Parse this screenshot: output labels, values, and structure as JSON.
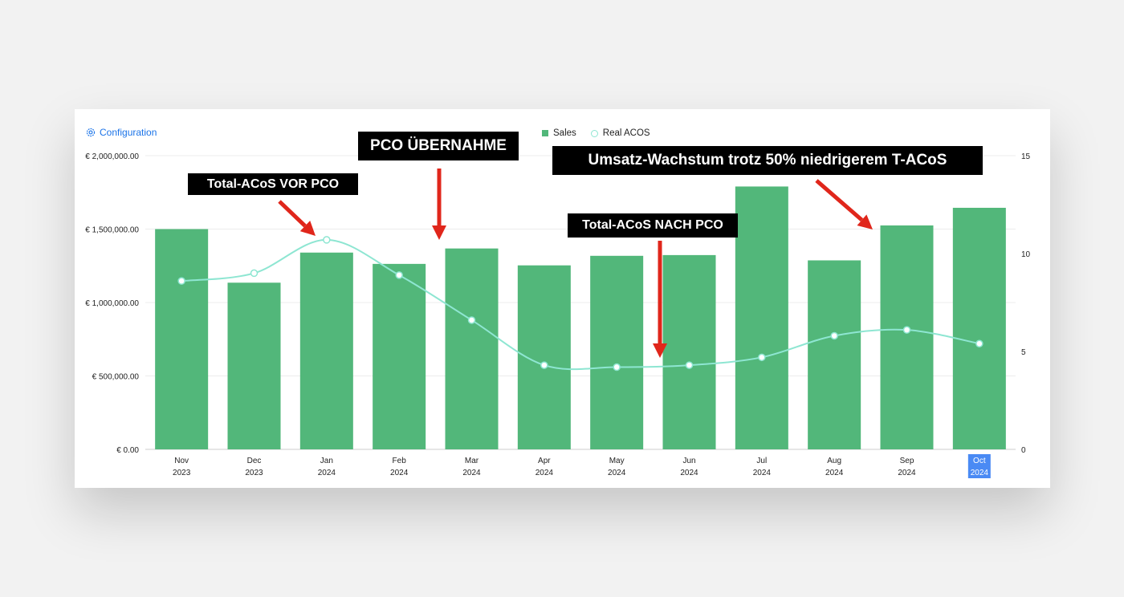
{
  "config": {
    "label": "Configuration",
    "icon": "gear-icon"
  },
  "legend": {
    "sales": "Sales",
    "acos": "Real ACOS"
  },
  "colors": {
    "bar": "#52b77a",
    "line": "#8ee6d2",
    "arrow": "#e0261b",
    "link": "#1a73e8",
    "highlight": "#4a8af4"
  },
  "callouts": {
    "before": "Total-ACoS VOR PCO",
    "takeover": "PCO ÜBERNAHME",
    "after": "Total-ACoS NACH PCO",
    "growth": "Umsatz-Wachstum trotz 50% niedrigerem T-ACoS"
  },
  "chart_data": {
    "type": "bar",
    "categories": [
      [
        "Nov",
        "2023"
      ],
      [
        "Dec",
        "2023"
      ],
      [
        "Jan",
        "2024"
      ],
      [
        "Feb",
        "2024"
      ],
      [
        "Mar",
        "2024"
      ],
      [
        "Apr",
        "2024"
      ],
      [
        "May",
        "2024"
      ],
      [
        "Jun",
        "2024"
      ],
      [
        "Jul",
        "2024"
      ],
      [
        "Aug",
        "2024"
      ],
      [
        "Sep",
        "2024"
      ],
      [
        "Oct",
        "2024"
      ]
    ],
    "highlighted_category": 11,
    "series": [
      {
        "name": "Sales",
        "type": "bar",
        "axis": "left",
        "values": [
          1500000,
          1135000,
          1340000,
          1263000,
          1368000,
          1253000,
          1318000,
          1323000,
          1790000,
          1287000,
          1525000,
          1645000
        ]
      },
      {
        "name": "Real ACOS",
        "type": "line",
        "smooth": true,
        "axis": "right",
        "values": [
          8.6,
          9.0,
          10.7,
          8.9,
          6.6,
          4.3,
          4.2,
          4.3,
          4.7,
          5.8,
          6.1,
          5.4
        ]
      }
    ],
    "y_left": {
      "min": 0,
      "max": 2000000,
      "ticks": [
        "€ 0.00",
        "€ 500,000.00",
        "€ 1,000,000.00",
        "€ 1,500,000.00",
        "€ 2,000,000.00"
      ]
    },
    "y_right": {
      "min": 0,
      "max": 15,
      "ticks": [
        "0",
        "5",
        "10",
        "15"
      ]
    },
    "grid": true,
    "legend_position": "top-center"
  }
}
